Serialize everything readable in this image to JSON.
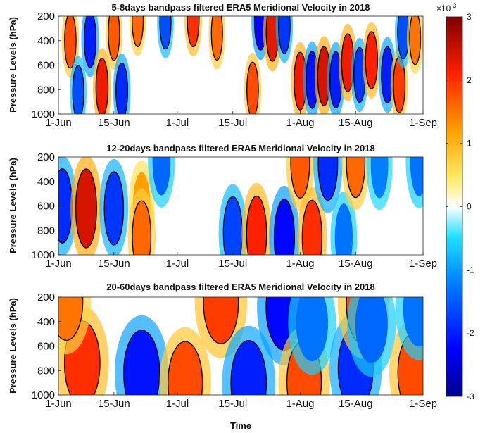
{
  "chart_data": [
    {
      "type": "heatmap",
      "title": "5-8days bandpass filtered ERA5 Meridional Velocity in 2018",
      "ylabel": "Pressure Levels (hPa)",
      "xlabel": "",
      "x_ticks": [
        "1-Jun",
        "15-Jun",
        "1-Jul",
        "15-Jul",
        "1-Aug",
        "15-Aug",
        "1-Sep"
      ],
      "y_ticks": [
        "200",
        "400",
        "600",
        "800",
        "1000"
      ],
      "ylim": [
        200,
        1000
      ],
      "y_reversed": true,
      "xlim": [
        "1-Jun",
        "1-Sep"
      ],
      "contour_level": 0.0015,
      "blobs": [
        {
          "date": "2018-06-04",
          "p": 400,
          "value": 0.0018
        },
        {
          "date": "2018-06-06",
          "p": 820,
          "value": -0.0016
        },
        {
          "date": "2018-06-09",
          "p": 390,
          "value": -0.002
        },
        {
          "date": "2018-06-12",
          "p": 780,
          "value": 0.0022
        },
        {
          "date": "2018-06-15",
          "p": 340,
          "value": 0.0017
        },
        {
          "date": "2018-06-17",
          "p": 810,
          "value": -0.0019
        },
        {
          "date": "2018-06-21",
          "p": 230,
          "value": 0.0016
        },
        {
          "date": "2018-06-28",
          "p": 250,
          "value": -0.0016
        },
        {
          "date": "2018-07-05",
          "p": 220,
          "value": 0.002
        },
        {
          "date": "2018-07-11",
          "p": 340,
          "value": 0.0016
        },
        {
          "date": "2018-07-20",
          "p": 800,
          "value": 0.0018
        },
        {
          "date": "2018-07-22",
          "p": 240,
          "value": -0.0022
        },
        {
          "date": "2018-07-25",
          "p": 330,
          "value": 0.0023
        },
        {
          "date": "2018-07-28",
          "p": 280,
          "value": -0.0018
        },
        {
          "date": "2018-08-01",
          "p": 730,
          "value": 0.0022
        },
        {
          "date": "2018-08-04",
          "p": 720,
          "value": -0.0021
        },
        {
          "date": "2018-08-07",
          "p": 690,
          "value": 0.0024
        },
        {
          "date": "2018-08-10",
          "p": 720,
          "value": -0.002
        },
        {
          "date": "2018-08-13",
          "p": 580,
          "value": 0.0022
        },
        {
          "date": "2018-08-16",
          "p": 680,
          "value": -0.0018
        },
        {
          "date": "2018-08-19",
          "p": 560,
          "value": 0.0021
        },
        {
          "date": "2018-08-23",
          "p": 680,
          "value": -0.002
        },
        {
          "date": "2018-08-26",
          "p": 760,
          "value": 0.0019
        },
        {
          "date": "2018-08-27",
          "p": 330,
          "value": -0.0016
        },
        {
          "date": "2018-08-30",
          "p": 380,
          "value": 0.0015
        }
      ]
    },
    {
      "type": "heatmap",
      "title": "12-20days bandpass filtered ERA5 Meridional Velocity in 2018",
      "ylabel": "Pressure Levels (hPa)",
      "xlabel": "",
      "x_ticks": [
        "1-Jun",
        "15-Jun",
        "1-Jul",
        "15-Jul",
        "1-Aug",
        "15-Aug",
        "1-Sep"
      ],
      "y_ticks": [
        "200",
        "400",
        "600",
        "800",
        "1000"
      ],
      "ylim": [
        200,
        1000
      ],
      "y_reversed": true,
      "xlim": [
        "1-Jun",
        "1-Sep"
      ],
      "contour_level": 0.0015,
      "blobs": [
        {
          "date": "2018-06-02",
          "p": 600,
          "value": -0.0019
        },
        {
          "date": "2018-06-08",
          "p": 620,
          "value": 0.0024
        },
        {
          "date": "2018-06-15",
          "p": 620,
          "value": -0.0018
        },
        {
          "date": "2018-06-22",
          "p": 600,
          "value": 0.0012
        },
        {
          "date": "2018-06-22",
          "p": 850,
          "value": 0.0016
        },
        {
          "date": "2018-06-27",
          "p": 230,
          "value": -0.0014
        },
        {
          "date": "2018-07-15",
          "p": 820,
          "value": -0.0017
        },
        {
          "date": "2018-07-21",
          "p": 830,
          "value": 0.0021
        },
        {
          "date": "2018-07-28",
          "p": 860,
          "value": -0.0022
        },
        {
          "date": "2018-08-01",
          "p": 240,
          "value": 0.0017
        },
        {
          "date": "2018-08-04",
          "p": 860,
          "value": 0.002
        },
        {
          "date": "2018-08-08",
          "p": 250,
          "value": -0.0019
        },
        {
          "date": "2018-08-12",
          "p": 860,
          "value": -0.0013
        },
        {
          "date": "2018-08-15",
          "p": 240,
          "value": 0.0016
        },
        {
          "date": "2018-08-21",
          "p": 260,
          "value": -0.0012
        },
        {
          "date": "2018-08-31",
          "p": 240,
          "value": -0.0013
        }
      ]
    },
    {
      "type": "heatmap",
      "title": "20-60days bandpass filtered ERA5 Meridional Velocity in 2018",
      "ylabel": "Pressure Levels (hPa)",
      "xlabel": "Time",
      "x_ticks": [
        "1-Jun",
        "15-Jun",
        "1-Jul",
        "15-Jul",
        "1-Aug",
        "15-Aug",
        "1-Sep"
      ],
      "y_ticks": [
        "200",
        "400",
        "600",
        "800",
        "1000"
      ],
      "ylim": [
        200,
        1000
      ],
      "y_reversed": true,
      "xlim": [
        "1-Jun",
        "1-Sep"
      ],
      "contour_level": 0.0015,
      "blobs": [
        {
          "date": "2018-06-07",
          "p": 740,
          "value": 0.002
        },
        {
          "date": "2018-06-03",
          "p": 230,
          "value": 0.0015
        },
        {
          "date": "2018-06-22",
          "p": 820,
          "value": -0.0021
        },
        {
          "date": "2018-07-03",
          "p": 900,
          "value": 0.0018
        },
        {
          "date": "2018-07-12",
          "p": 240,
          "value": 0.0019
        },
        {
          "date": "2018-07-19",
          "p": 900,
          "value": -0.002
        },
        {
          "date": "2018-07-28",
          "p": 280,
          "value": -0.0022
        },
        {
          "date": "2018-08-02",
          "p": 890,
          "value": 0.0018
        },
        {
          "date": "2018-08-04",
          "p": 410,
          "value": -0.0013
        },
        {
          "date": "2018-08-15",
          "p": 780,
          "value": -0.0019
        },
        {
          "date": "2018-08-17",
          "p": 250,
          "value": 0.0018
        },
        {
          "date": "2018-08-19",
          "p": 420,
          "value": -0.0014
        },
        {
          "date": "2018-08-30",
          "p": 820,
          "value": 0.0018
        },
        {
          "date": "2018-08-31",
          "p": 290,
          "value": -0.0013
        }
      ]
    }
  ],
  "colorbar": {
    "exponent_label": "×10",
    "exponent": "-3",
    "ticks": [
      "3",
      "2",
      "1",
      "0",
      "-1",
      "-2",
      "-3"
    ],
    "tick_values": [
      3,
      2,
      1,
      0,
      -1,
      -2,
      -3
    ],
    "range": [
      -0.003,
      0.003
    ],
    "colormap": "jet-with-white-center",
    "colors": [
      "#00008f",
      "#0050ff",
      "#00c8ff",
      "#ffffff",
      "#ffdd00",
      "#ff5a00",
      "#800000"
    ]
  }
}
